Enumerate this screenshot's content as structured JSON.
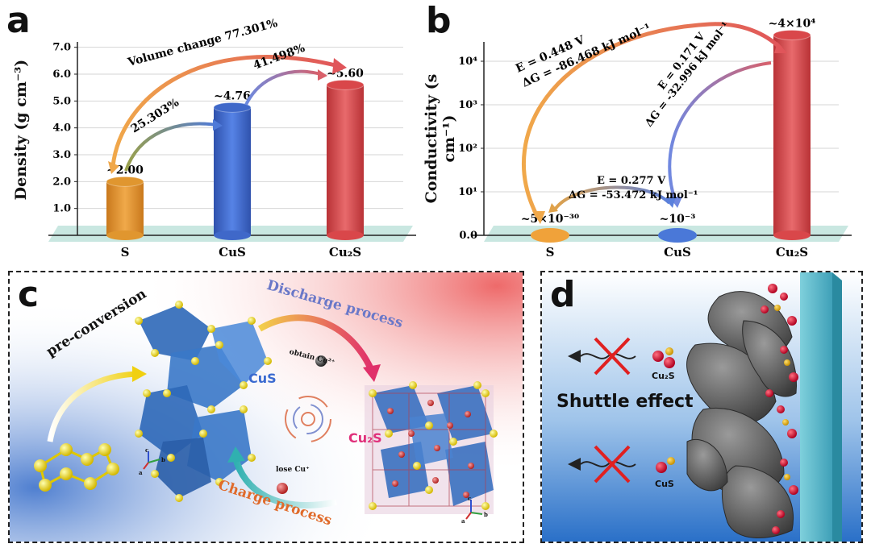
{
  "panels": {
    "a": {
      "letter": "a",
      "chart_data": {
        "type": "bar",
        "categories": [
          "S",
          "CuS",
          "Cu₂S"
        ],
        "values": [
          2.0,
          4.76,
          5.6
        ],
        "value_labels": [
          "~2.00",
          "~4.76",
          "~5.60"
        ],
        "ylabel": "Density (g cm⁻³)",
        "yticks": [
          "1.0",
          "2.0",
          "3.0",
          "4.0",
          "5.0",
          "6.0",
          "7.0"
        ],
        "ylim": [
          0,
          7.2
        ],
        "colors": [
          "#e0962f",
          "#3f68c9",
          "#d9474a"
        ],
        "annotations": [
          "Volume change 77.301%",
          "25.303%",
          "41.498%"
        ]
      }
    },
    "b": {
      "letter": "b",
      "chart_data": {
        "type": "bar",
        "categories": [
          "S",
          "CuS",
          "Cu₂S"
        ],
        "value_labels": [
          "~5×10⁻³⁰",
          "~10⁻³",
          "~4×10⁴"
        ],
        "ylabel": "Conductivity (s cm⁻¹)",
        "yticks": [
          "0.0",
          "10¹",
          "10²",
          "10³",
          "10⁴"
        ],
        "scale": "log",
        "colors": [
          "#f0a23a",
          "#4a78d8",
          "#d9474a"
        ],
        "annotations": [
          {
            "e": "E = 0.448 V",
            "g": "ΔG = -86.468 kJ mol⁻¹"
          },
          {
            "e": "E = 0.171 V",
            "g": "ΔG = -32.996 kJ mol⁻¹"
          },
          {
            "e": "E = 0.277 V",
            "g": "ΔG = -53.472 kJ mol⁻¹"
          }
        ]
      }
    },
    "c": {
      "letter": "c",
      "labels": {
        "pre": "pre-conversion",
        "discharge": "Discharge process",
        "charge": "Charge process",
        "obtain": "obtain Cu²⁺",
        "lose": "lose Cu⁺",
        "cus": "CuS",
        "cu2s": "Cu₂S"
      },
      "axes": {
        "a": "a",
        "b": "b",
        "c": "c"
      }
    },
    "d": {
      "letter": "d",
      "labels": {
        "shuttle": "Shuttle effect",
        "cu2s": "Cu₂S",
        "cus": "CuS"
      }
    }
  }
}
